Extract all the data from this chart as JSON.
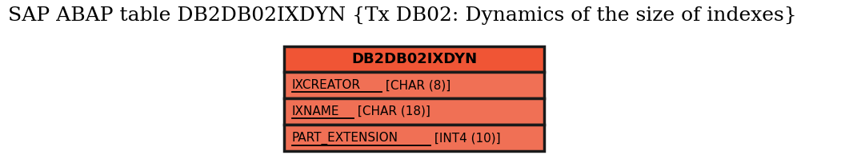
{
  "title": "SAP ABAP table DB2DB02IXDYN {Tx DB02: Dynamics of the size of indexes}",
  "title_fontsize": 18,
  "title_color": "#000000",
  "background_color": "#ffffff",
  "table_name": "DB2DB02IXDYN",
  "table_header_bg": "#f05535",
  "table_header_text_color": "#000000",
  "table_row_bg": "#f07055",
  "table_border_color": "#1a1a1a",
  "fields": [
    {
      "name": "IXCREATOR",
      "type": " [CHAR (8)]",
      "underline": true
    },
    {
      "name": "IXNAME",
      "type": " [CHAR (18)]",
      "underline": true
    },
    {
      "name": "PART_EXTENSION",
      "type": " [INT4 (10)]",
      "underline": true
    }
  ],
  "header_fontsize": 13,
  "field_fontsize": 11,
  "border_lw": 2.5
}
